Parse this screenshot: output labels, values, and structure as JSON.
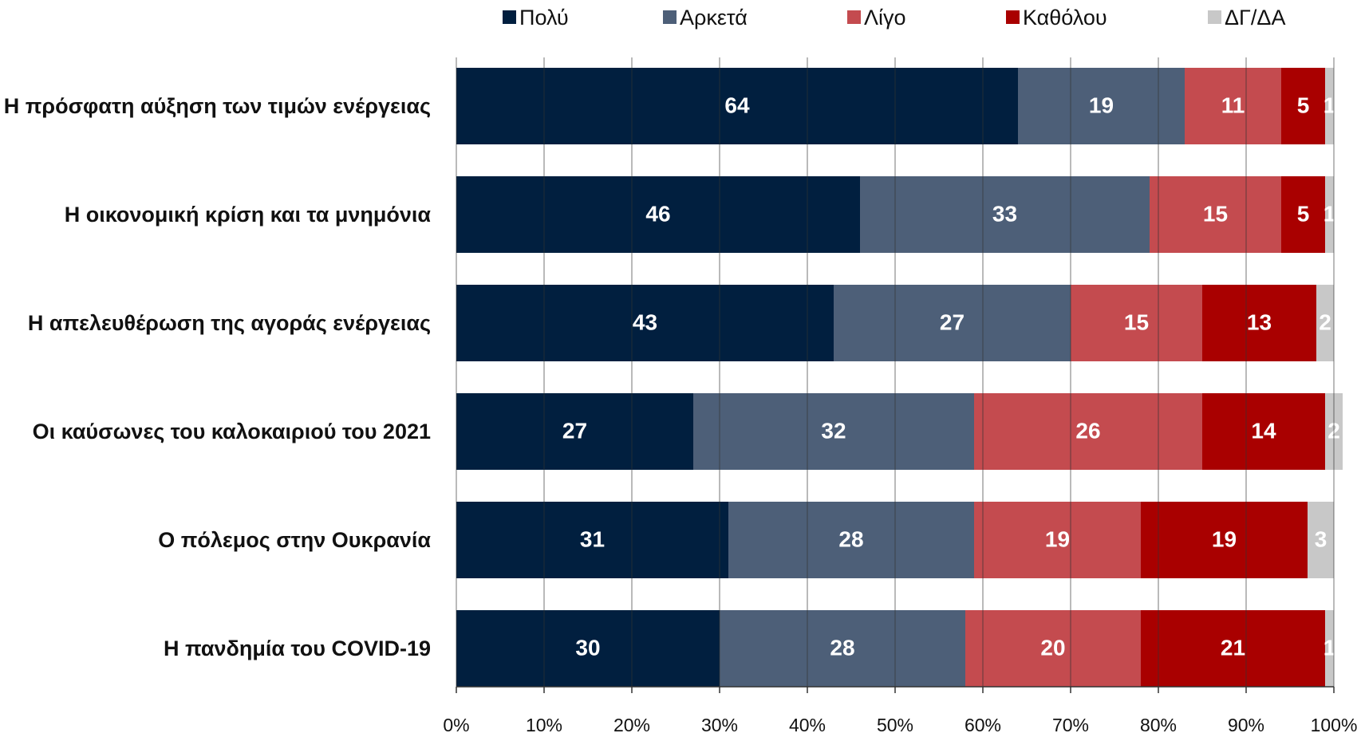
{
  "chart_data": {
    "type": "stacked-bar-horizontal",
    "categories": [
      "Η πρόσφατη αύξηση των τιμών ενέργειας",
      "Η οικονομική κρίση και τα μνημόνια",
      "Η απελευθέρωση της αγοράς ενέργειας",
      "Οι καύσωνες του καλοκαιριού του 2021",
      "Ο πόλεμος στην Ουκρανία",
      "Η πανδημία του COVID-19"
    ],
    "series": [
      {
        "name": "Πολύ",
        "color": "#011f3f",
        "values": [
          64,
          46,
          43,
          27,
          31,
          30
        ]
      },
      {
        "name": "Αρκετά",
        "color": "#4d5f78",
        "values": [
          19,
          33,
          27,
          32,
          28,
          28
        ]
      },
      {
        "name": "Λίγο",
        "color": "#c44b4f",
        "values": [
          11,
          15,
          15,
          26,
          19,
          20
        ]
      },
      {
        "name": "Καθόλου",
        "color": "#a90000",
        "values": [
          5,
          5,
          13,
          14,
          19,
          21
        ]
      },
      {
        "name": "ΔΓ/ΔΑ",
        "color": "#c8c8c8",
        "values": [
          1,
          1,
          2,
          2,
          3,
          1
        ]
      }
    ],
    "xlim": [
      0,
      100
    ],
    "xticks": [
      {
        "value": 0,
        "label": "0%"
      },
      {
        "value": 10,
        "label": "10%"
      },
      {
        "value": 20,
        "label": "20%"
      },
      {
        "value": 30,
        "label": "30%"
      },
      {
        "value": 40,
        "label": "40%"
      },
      {
        "value": 50,
        "label": "50%"
      },
      {
        "value": 60,
        "label": "60%"
      },
      {
        "value": 70,
        "label": "70%"
      },
      {
        "value": 80,
        "label": "80%"
      },
      {
        "value": 90,
        "label": "90%"
      },
      {
        "value": 100,
        "label": "100%"
      }
    ],
    "grid": true,
    "legend": "top"
  }
}
